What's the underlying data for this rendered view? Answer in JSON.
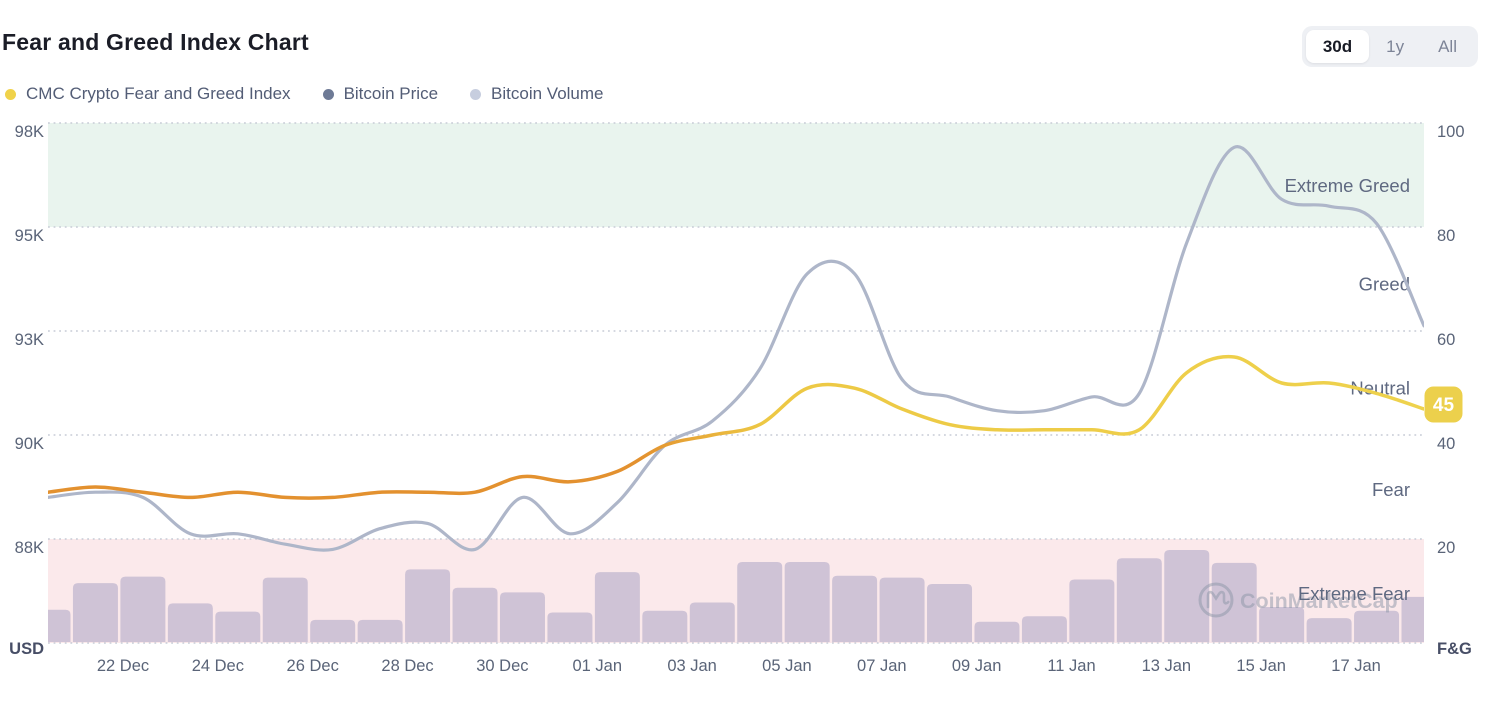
{
  "header": {
    "title": "Fear and Greed Index Chart",
    "range_selector": {
      "options": [
        "30d",
        "1y",
        "All"
      ],
      "selected": "30d"
    },
    "legend": {
      "items": [
        {
          "label": "CMC Crypto Fear and Greed Index",
          "color": "#f0d24a"
        },
        {
          "label": "Bitcoin Price",
          "color": "#6e7a96"
        },
        {
          "label": "Bitcoin Volume",
          "color": "#c7cedf"
        }
      ]
    }
  },
  "chart": {
    "y_axis_left": {
      "unit": "USD",
      "ticks": [
        "98K",
        "95K",
        "93K",
        "90K",
        "88K"
      ]
    },
    "y_axis_right": {
      "unit": "F&G",
      "ticks": [
        "100",
        "80",
        "60",
        "40",
        "20"
      ]
    },
    "x_axis": {
      "ticks": [
        "22 Dec",
        "24 Dec",
        "26 Dec",
        "28 Dec",
        "30 Dec",
        "01 Jan",
        "03 Jan",
        "05 Jan",
        "07 Jan",
        "09 Jan",
        "11 Jan",
        "13 Jan",
        "15 Jan",
        "17 Jan"
      ]
    },
    "zones": [
      {
        "label": "Extreme Greed",
        "center_value": 88
      },
      {
        "label": "Greed",
        "center_value": 69
      },
      {
        "label": "Neutral",
        "center_value": 49
      },
      {
        "label": "Fear",
        "center_value": 29.5
      },
      {
        "label": "Extreme Fear",
        "center_value": 9.5
      }
    ],
    "badge": {
      "value": "45"
    },
    "watermark": "CoinMarketCap",
    "colors": {
      "price_line": "#aeb6c9",
      "fng_orange": "#e3912f",
      "fng_yellow": "#eed24d",
      "volume_bar": "#cfc3d6",
      "greed_band": "#e9f4ee",
      "fear_band": "#fbe9eb",
      "gridline": "#c7cbd6",
      "axis_text": "#5a6478",
      "axis_unit_text": "#474e66",
      "zone_text": "#5f6981",
      "watermark_color": "#8d96a8",
      "badge_bg": "#ecd04c",
      "badge_text": "#ffffff"
    }
  },
  "chart_data": {
    "type": "line",
    "title": "Fear and Greed Index Chart",
    "x_tick_labels": [
      "22 Dec",
      "24 Dec",
      "26 Dec",
      "28 Dec",
      "30 Dec",
      "01 Jan",
      "03 Jan",
      "05 Jan",
      "07 Jan",
      "09 Jan",
      "11 Jan",
      "13 Jan",
      "15 Jan",
      "17 Jan"
    ],
    "dates": [
      "20 Dec",
      "21 Dec",
      "22 Dec",
      "23 Dec",
      "24 Dec",
      "25 Dec",
      "26 Dec",
      "27 Dec",
      "28 Dec",
      "29 Dec",
      "30 Dec",
      "31 Dec",
      "01 Jan",
      "02 Jan",
      "03 Jan",
      "04 Jan",
      "05 Jan",
      "06 Jan",
      "07 Jan",
      "08 Jan",
      "09 Jan",
      "10 Jan",
      "11 Jan",
      "12 Jan",
      "13 Jan",
      "14 Jan",
      "15 Jan",
      "16 Jan",
      "17 Jan",
      "18 Jan"
    ],
    "axes": {
      "left": {
        "label": "USD",
        "ticks": [
          88,
          90,
          93,
          95,
          98
        ],
        "unit": "thousand USD"
      },
      "right": {
        "label": "F&G",
        "ticks": [
          20,
          40,
          60,
          80,
          100
        ],
        "range": [
          0,
          100
        ]
      }
    },
    "bands": [
      {
        "name": "Extreme Greed zone",
        "axis": "right",
        "from": 80,
        "to": 100
      },
      {
        "name": "Extreme Fear zone",
        "axis": "right",
        "from": 0,
        "to": 20
      }
    ],
    "series": [
      {
        "name": "CMC Crypto Fear and Greed Index",
        "axis": "right",
        "style": "line",
        "values": [
          29,
          30,
          29,
          28,
          29,
          28,
          28,
          29,
          29,
          29,
          32,
          31,
          33,
          38,
          40,
          42,
          49,
          49,
          45,
          42,
          41,
          41,
          41,
          41,
          52,
          55,
          50,
          50,
          48,
          45
        ],
        "last_value_badge": 45
      },
      {
        "name": "Bitcoin Price",
        "axis": "left",
        "style": "line",
        "unit": "K USD",
        "values": [
          88.8,
          88.9,
          88.8,
          88.1,
          88.1,
          87.9,
          87.8,
          88.2,
          88.3,
          87.8,
          88.8,
          88.1,
          88.7,
          89.8,
          90.4,
          91.9,
          94.1,
          94.1,
          91.6,
          91.1,
          90.7,
          90.7,
          91.1,
          91.2,
          94.7,
          97.3,
          95.8,
          95.6,
          95.1,
          93.1
        ]
      },
      {
        "name": "Bitcoin Volume",
        "axis": "none",
        "style": "bar",
        "unit": "relative (0-1, unlabeled axis)",
        "values": [
          0.35,
          0.64,
          0.71,
          0.42,
          0.33,
          0.7,
          0.24,
          0.24,
          0.79,
          0.59,
          0.54,
          0.32,
          0.76,
          0.34,
          0.43,
          0.87,
          0.87,
          0.72,
          0.7,
          0.63,
          0.22,
          0.28,
          0.68,
          0.91,
          1.0,
          0.86,
          0.38,
          0.26,
          0.34,
          0.49
        ]
      }
    ],
    "grid": "horizontal-dotted",
    "legend_position": "top-left"
  }
}
